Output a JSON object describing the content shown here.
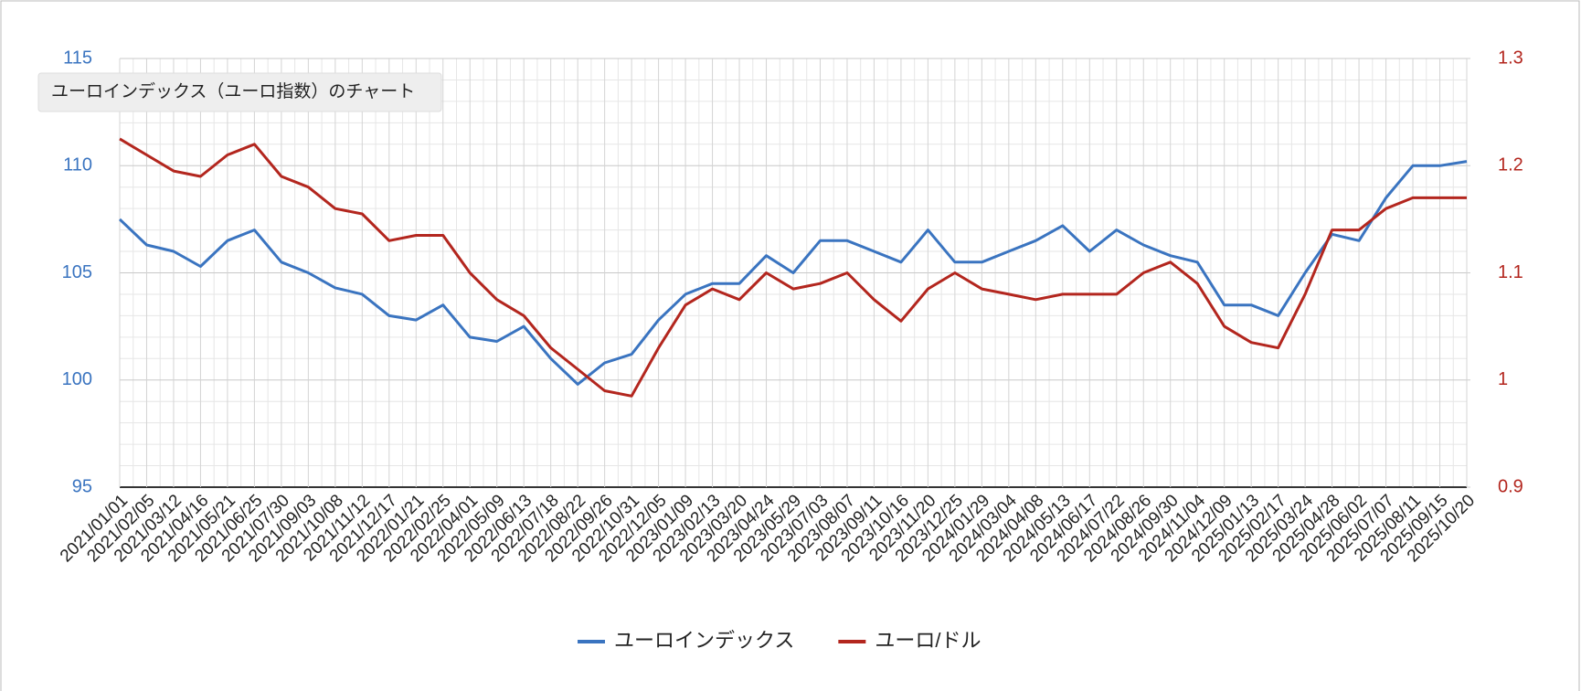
{
  "chart_data": {
    "type": "line",
    "title": "ユーロインデックス（ユーロ指数）のチャート",
    "categories": [
      "2021/01/01",
      "2021/02/05",
      "2021/03/12",
      "2021/04/16",
      "2021/05/21",
      "2021/06/25",
      "2021/07/30",
      "2021/09/03",
      "2021/10/08",
      "2021/11/12",
      "2021/12/17",
      "2022/01/21",
      "2022/02/25",
      "2022/04/01",
      "2022/05/09",
      "2022/06/13",
      "2022/07/18",
      "2022/08/22",
      "2022/09/26",
      "2022/10/31",
      "2022/12/05",
      "2023/01/09",
      "2023/02/13",
      "2023/03/20",
      "2023/04/24",
      "2023/05/29",
      "2023/07/03",
      "2023/08/07",
      "2023/09/11",
      "2023/10/16",
      "2023/11/20",
      "2023/12/25",
      "2024/01/29",
      "2024/03/04",
      "2024/04/08",
      "2024/05/13",
      "2024/06/17",
      "2024/07/22",
      "2024/08/26",
      "2024/09/30",
      "2024/11/04",
      "2024/12/09",
      "2025/01/13",
      "2025/02/17",
      "2025/03/24",
      "2025/04/28",
      "2025/06/02",
      "2025/07/07",
      "2025/08/11",
      "2025/09/15",
      "2025/10/20"
    ],
    "series": [
      {
        "name": "ユーロインデックス",
        "color": "#3a74c0",
        "values": [
          107.5,
          106.3,
          106,
          105.3,
          106.5,
          107,
          105.5,
          105,
          104.3,
          104,
          103,
          102.8,
          103.5,
          102,
          101.8,
          102.5,
          101,
          99.8,
          100.8,
          101.2,
          102.8,
          104,
          104.5,
          104.5,
          105.8,
          105,
          106.5,
          106.5,
          106,
          105.5,
          107,
          105.5,
          105.5,
          106,
          106.5,
          107.2,
          106,
          107,
          106.3,
          105.8,
          105.5,
          103.5,
          103.5,
          103,
          105,
          106.8,
          106.5,
          108.5,
          110,
          110,
          110.2
        ]
      },
      {
        "name": "ユーロ/ドル",
        "color": "#b3261e",
        "axis": "y2",
        "values": [
          1.225,
          1.21,
          1.195,
          1.19,
          1.21,
          1.22,
          1.19,
          1.18,
          1.16,
          1.155,
          1.13,
          1.135,
          1.135,
          1.1,
          1.075,
          1.06,
          1.03,
          1.01,
          0.99,
          0.985,
          1.03,
          1.07,
          1.085,
          1.075,
          1.1,
          1.085,
          1.09,
          1.1,
          1.075,
          1.055,
          1.085,
          1.1,
          1.085,
          1.08,
          1.075,
          1.08,
          1.08,
          1.08,
          1.1,
          1.11,
          1.09,
          1.05,
          1.035,
          1.03,
          1.08,
          1.14,
          1.14,
          1.16,
          1.17,
          1.17,
          1.17
        ]
      }
    ],
    "ylim": [
      95,
      115
    ],
    "yticks": [
      95,
      100,
      105,
      110,
      115
    ],
    "y2lim": [
      0.9,
      1.3
    ],
    "y2ticks": [
      0.9,
      1,
      1.1,
      1.2,
      1.3
    ],
    "grid": true,
    "legend": "bottom"
  }
}
